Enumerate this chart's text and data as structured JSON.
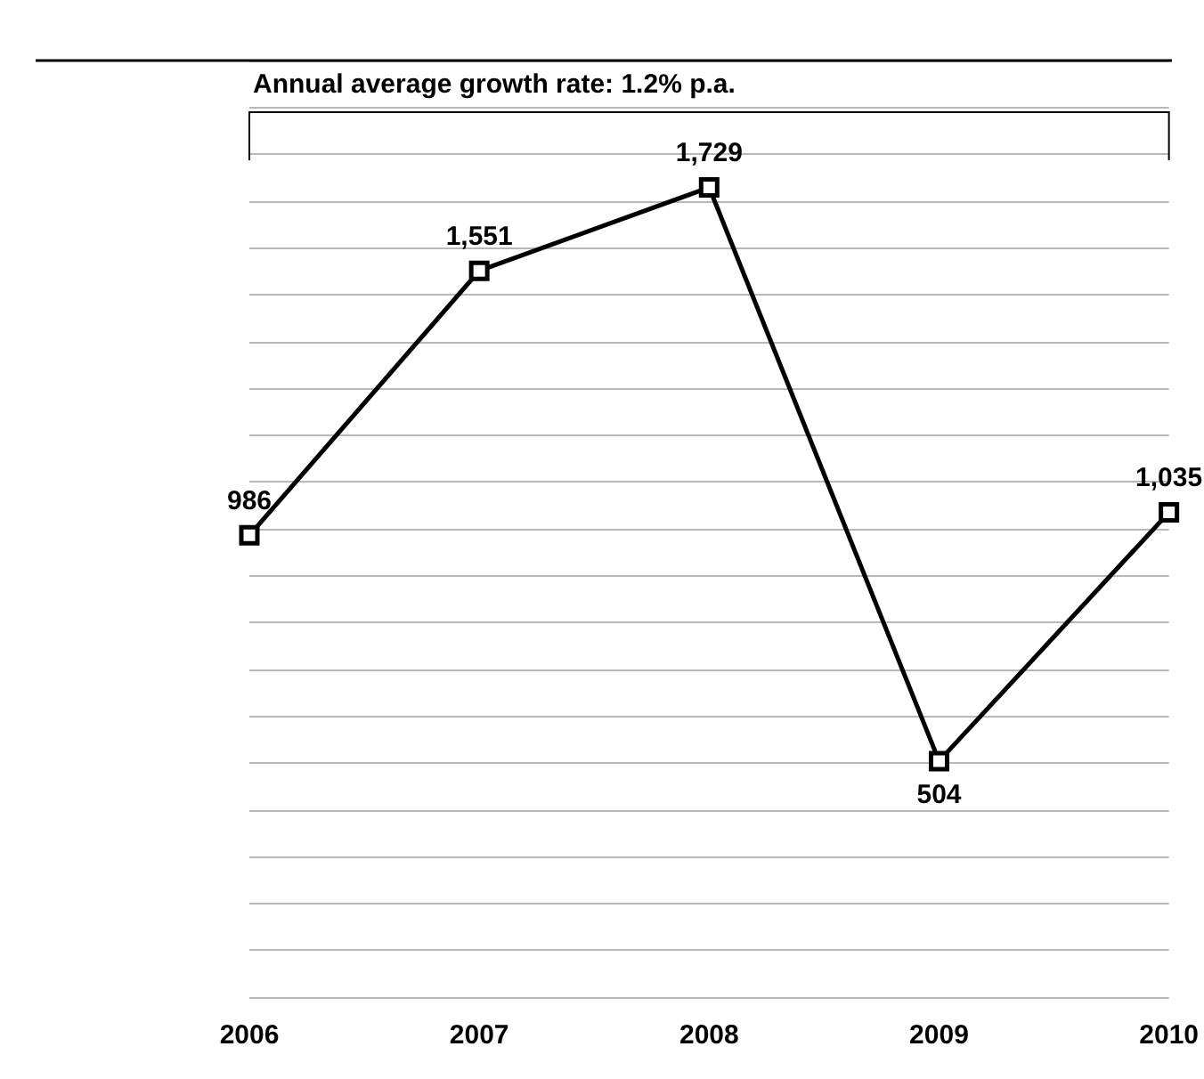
{
  "chart_data": {
    "type": "line",
    "categories": [
      "2006",
      "2007",
      "2008",
      "2009",
      "2010"
    ],
    "series": [
      {
        "color": "#000000",
        "values": [
          986,
          1551,
          1729,
          504,
          1035
        ],
        "value_labels": [
          "986",
          "1,551",
          "1,729",
          "504",
          "1,035"
        ]
      }
    ],
    "marker": "square",
    "line_style": "solid",
    "grid": "y",
    "tick_labels": "x",
    "ylim": [
      0,
      2000
    ],
    "yticks": [
      {
        "value": 0,
        "label": null
      },
      {
        "value": 100,
        "label": null
      },
      {
        "value": 200,
        "label": null
      },
      {
        "value": 300,
        "label": null
      },
      {
        "value": 400,
        "label": null
      },
      {
        "value": 500,
        "label": null
      },
      {
        "value": 600,
        "label": null
      },
      {
        "value": 700,
        "label": null
      },
      {
        "value": 800,
        "label": null
      },
      {
        "value": 900,
        "label": null
      },
      {
        "value": 1000,
        "label": null
      },
      {
        "value": 1100,
        "label": null
      },
      {
        "value": 1200,
        "label": null
      },
      {
        "value": 1300,
        "label": null
      },
      {
        "value": 1400,
        "label": null
      },
      {
        "value": 1500,
        "label": null
      },
      {
        "value": 1600,
        "label": null
      },
      {
        "value": 1700,
        "label": null
      },
      {
        "value": 1800,
        "label": null
      },
      {
        "value": 1900,
        "label": null
      },
      {
        "value": 2000,
        "label": null
      }
    ],
    "annotations": [
      "Annual average growth rate: 1.2% p.a."
    ]
  }
}
